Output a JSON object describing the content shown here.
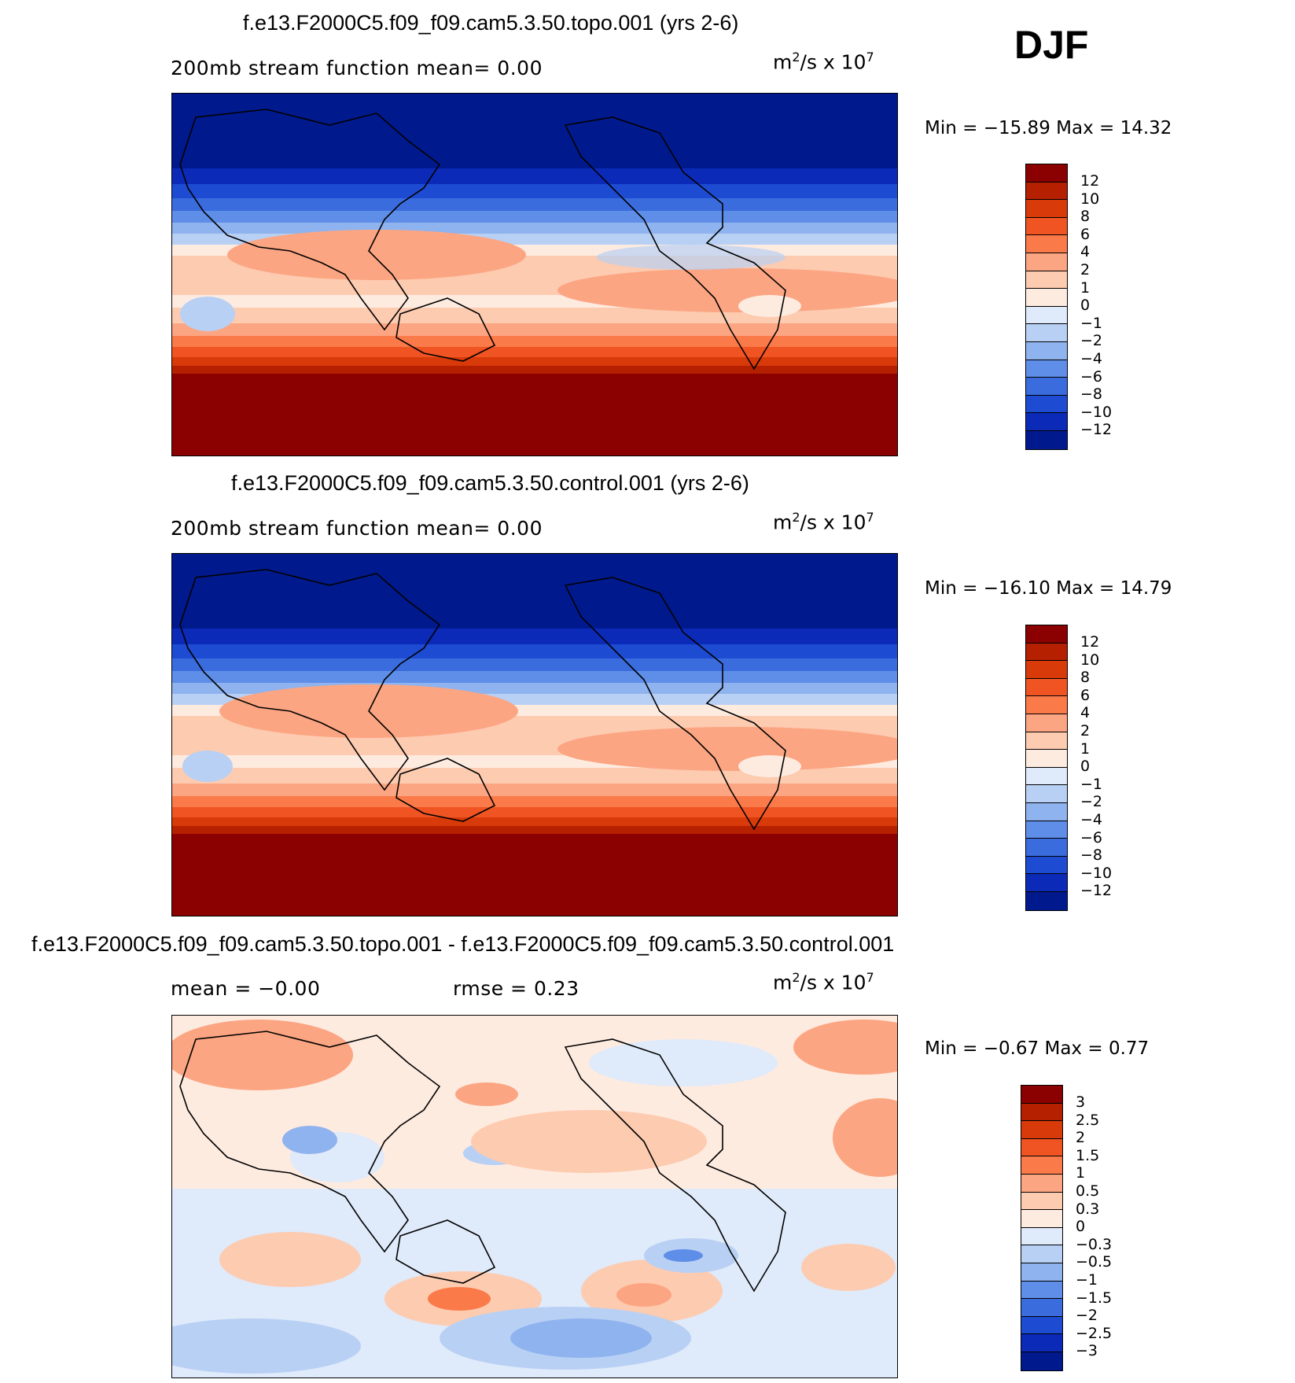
{
  "season": "DJF",
  "chart_data": [
    {
      "type": "heatmap",
      "title": "f.e13.F2000C5.f09_f09.cam5.3.50.topo.001 (yrs 2-6)",
      "subtitle_left": "200mb stream function   mean=    0.00",
      "units": {
        "base": "m",
        "exp": "2",
        "rest": "/s x 10",
        "exp2": "7"
      },
      "min_max": "Min = −15.89 Max =   14.32",
      "min": -15.89,
      "max": 14.32,
      "levels": [
        "12",
        "10",
        "8",
        "6",
        "4",
        "2",
        "1",
        "0",
        "−1",
        "−2",
        "−4",
        "−6",
        "−8",
        "−10",
        "−12"
      ],
      "colors": [
        "#8b0000",
        "#b52000",
        "#d83a0a",
        "#f05423",
        "#fb7a49",
        "#fca582",
        "#fdcbb0",
        "#feebe0",
        "#dfeafa",
        "#b8d0f4",
        "#8fb3ee",
        "#5f8ee8",
        "#3a6cde",
        "#1d4bd2",
        "#0b2ab8",
        "#001a8e"
      ]
    },
    {
      "type": "heatmap",
      "title": "f.e13.F2000C5.f09_f09.cam5.3.50.control.001 (yrs 2-6)",
      "subtitle_left": "200mb stream function   mean=    0.00",
      "units": {
        "base": "m",
        "exp": "2",
        "rest": "/s x 10",
        "exp2": "7"
      },
      "min_max": "Min = −16.10 Max =   14.79",
      "min": -16.1,
      "max": 14.79,
      "levels": [
        "12",
        "10",
        "8",
        "6",
        "4",
        "2",
        "1",
        "0",
        "−1",
        "−2",
        "−4",
        "−6",
        "−8",
        "−10",
        "−12"
      ],
      "colors": [
        "#8b0000",
        "#b52000",
        "#d83a0a",
        "#f05423",
        "#fb7a49",
        "#fca582",
        "#fdcbb0",
        "#feebe0",
        "#dfeafa",
        "#b8d0f4",
        "#8fb3ee",
        "#5f8ee8",
        "#3a6cde",
        "#1d4bd2",
        "#0b2ab8",
        "#001a8e"
      ]
    },
    {
      "type": "heatmap",
      "title": "f.e13.F2000C5.f09_f09.cam5.3.50.topo.001 - f.e13.F2000C5.f09_f09.cam5.3.50.control.001",
      "subtitle_left": "mean =   −0.00",
      "subtitle_right": "rmse =    0.23",
      "units": {
        "base": "m",
        "exp": "2",
        "rest": "/s x 10",
        "exp2": "7"
      },
      "min_max": "Min =   −0.67 Max =    0.77",
      "min": -0.67,
      "max": 0.77,
      "levels": [
        "3",
        "2.5",
        "2",
        "1.5",
        "1",
        "0.5",
        "0.3",
        "0",
        "−0.3",
        "−0.5",
        "−1",
        "−1.5",
        "−2",
        "−2.5",
        "−3"
      ],
      "colors": [
        "#8b0000",
        "#b52000",
        "#d83a0a",
        "#f05423",
        "#fb7a49",
        "#fca582",
        "#fdcbb0",
        "#feebe0",
        "#dfeafa",
        "#b8d0f4",
        "#8fb3ee",
        "#5f8ee8",
        "#3a6cde",
        "#1d4bd2",
        "#0b2ab8",
        "#001a8e"
      ]
    }
  ]
}
